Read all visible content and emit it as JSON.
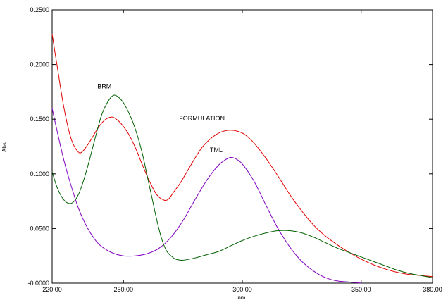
{
  "chart_data": {
    "type": "line",
    "xlabel": "nm.",
    "ylabel": "Abs.",
    "xlim": [
      220,
      380
    ],
    "ylim": [
      0,
      0.25
    ],
    "x_ticks": [
      220,
      250,
      300,
      350,
      380
    ],
    "x_tick_labels": [
      "220.00",
      "250.00",
      "300.00",
      "350.00",
      "380.00"
    ],
    "y_ticks": [
      0,
      0.05,
      0.1,
      0.15,
      0.2,
      0.25
    ],
    "y_tick_labels": [
      "-0.0000",
      "0.0500",
      "0.1000",
      "0.1500",
      "0.2000",
      "0.2500"
    ],
    "grid": false,
    "series": [
      {
        "name": "FORMULATION",
        "color": "#e00000",
        "label_at": [
          283,
          0.149
        ],
        "x": [
          220,
          222,
          225,
          228,
          231,
          233,
          236,
          239,
          242,
          245,
          247,
          249,
          252,
          255,
          258,
          261,
          264,
          267,
          269,
          271,
          274,
          277,
          280,
          283,
          286,
          289,
          292,
          295,
          298,
          301,
          305,
          310,
          315,
          320,
          325,
          330,
          335,
          340,
          345,
          350,
          355,
          360,
          365,
          370,
          375,
          380
        ],
        "y": [
          0.228,
          0.2,
          0.16,
          0.132,
          0.12,
          0.121,
          0.13,
          0.141,
          0.149,
          0.152,
          0.15,
          0.146,
          0.137,
          0.124,
          0.108,
          0.093,
          0.081,
          0.076,
          0.077,
          0.083,
          0.092,
          0.103,
          0.114,
          0.124,
          0.131,
          0.136,
          0.139,
          0.14,
          0.139,
          0.136,
          0.128,
          0.114,
          0.098,
          0.081,
          0.066,
          0.053,
          0.043,
          0.035,
          0.028,
          0.022,
          0.017,
          0.013,
          0.01,
          0.008,
          0.007,
          0.006
        ]
      },
      {
        "name": "TML",
        "color": "#8000c0",
        "label_at": [
          289,
          0.12
        ],
        "x": [
          220,
          222,
          225,
          228,
          231,
          234,
          237,
          240,
          245,
          250,
          255,
          260,
          265,
          270,
          275,
          280,
          285,
          290,
          293,
          295,
          297,
          300,
          305,
          310,
          315,
          320,
          325,
          330,
          335,
          340,
          345,
          350
        ],
        "y": [
          0.16,
          0.14,
          0.112,
          0.089,
          0.069,
          0.054,
          0.043,
          0.035,
          0.028,
          0.025,
          0.025,
          0.027,
          0.032,
          0.042,
          0.057,
          0.076,
          0.094,
          0.108,
          0.113,
          0.115,
          0.114,
          0.109,
          0.093,
          0.071,
          0.05,
          0.033,
          0.02,
          0.011,
          0.005,
          0.002,
          0.001,
          0.0
        ]
      },
      {
        "name": "BRM",
        "color": "#006000",
        "label_at": [
          242,
          0.178
        ],
        "x": [
          220,
          222,
          224,
          226,
          228,
          230,
          232,
          235,
          238,
          241,
          244,
          246,
          248,
          250,
          252,
          254,
          256,
          258,
          260,
          262,
          264,
          266,
          268,
          270,
          272,
          275,
          280,
          285,
          290,
          295,
          300,
          305,
          310,
          315,
          320,
          325,
          330,
          335,
          340,
          345,
          350,
          355,
          360,
          365,
          370,
          375,
          380
        ],
        "y": [
          0.102,
          0.088,
          0.079,
          0.074,
          0.073,
          0.077,
          0.086,
          0.107,
          0.132,
          0.155,
          0.168,
          0.172,
          0.17,
          0.165,
          0.157,
          0.147,
          0.134,
          0.118,
          0.098,
          0.078,
          0.058,
          0.041,
          0.03,
          0.025,
          0.022,
          0.021,
          0.023,
          0.026,
          0.029,
          0.034,
          0.039,
          0.043,
          0.046,
          0.048,
          0.048,
          0.046,
          0.042,
          0.037,
          0.032,
          0.028,
          0.024,
          0.02,
          0.016,
          0.012,
          0.009,
          0.007,
          0.005
        ]
      }
    ]
  }
}
